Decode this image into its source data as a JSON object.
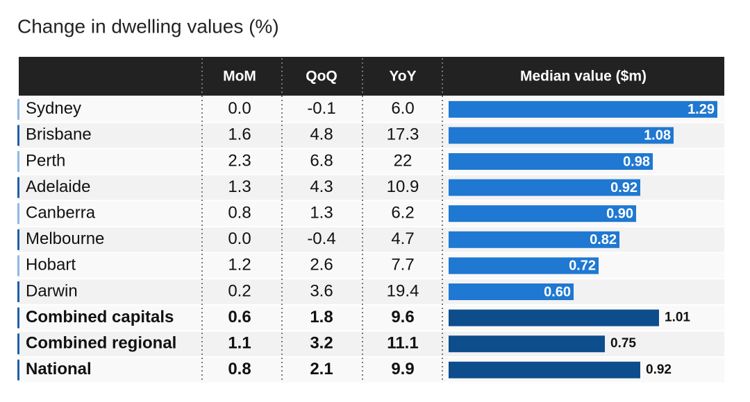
{
  "title": "Change in dwelling values (%)",
  "table": {
    "columns": [
      "MoM",
      "QoQ",
      "YoY",
      "Median value ($m)"
    ],
    "rows": [
      [
        "Sydney",
        "0.0",
        "-0.1",
        "6.0"
      ],
      [
        "Brisbane",
        "1.6",
        "4.8",
        "17.3"
      ],
      [
        "Perth",
        "2.3",
        "6.8",
        "22"
      ],
      [
        "Adelaide",
        "1.3",
        "4.3",
        "10.9"
      ],
      [
        "Canberra",
        "0.8",
        "1.3",
        "6.2"
      ],
      [
        "Melbourne",
        "0.0",
        "-0.4",
        "4.7"
      ],
      [
        "Hobart",
        "1.2",
        "2.6",
        "7.7"
      ],
      [
        "Darwin",
        "0.2",
        "3.6",
        "19.4"
      ]
    ],
    "summary_rows": [
      [
        "Combined capitals",
        "0.6",
        "1.8",
        "9.6"
      ],
      [
        "Combined regional",
        "1.1",
        "3.2",
        "11.1"
      ],
      [
        "National",
        "0.8",
        "2.1",
        "9.9"
      ]
    ],
    "median": {
      "values": [
        1.29,
        1.08,
        0.98,
        0.92,
        0.9,
        0.82,
        0.72,
        0.6,
        1.01,
        0.75,
        0.92
      ],
      "value_labels": [
        "1.29",
        "1.08",
        "0.98",
        "0.92",
        "0.90",
        "0.82",
        "0.72",
        "0.60",
        "1.01",
        "0.75",
        "0.92"
      ],
      "color": "#1f78d1",
      "summary_color": "#0d4d8c"
    }
  }
}
